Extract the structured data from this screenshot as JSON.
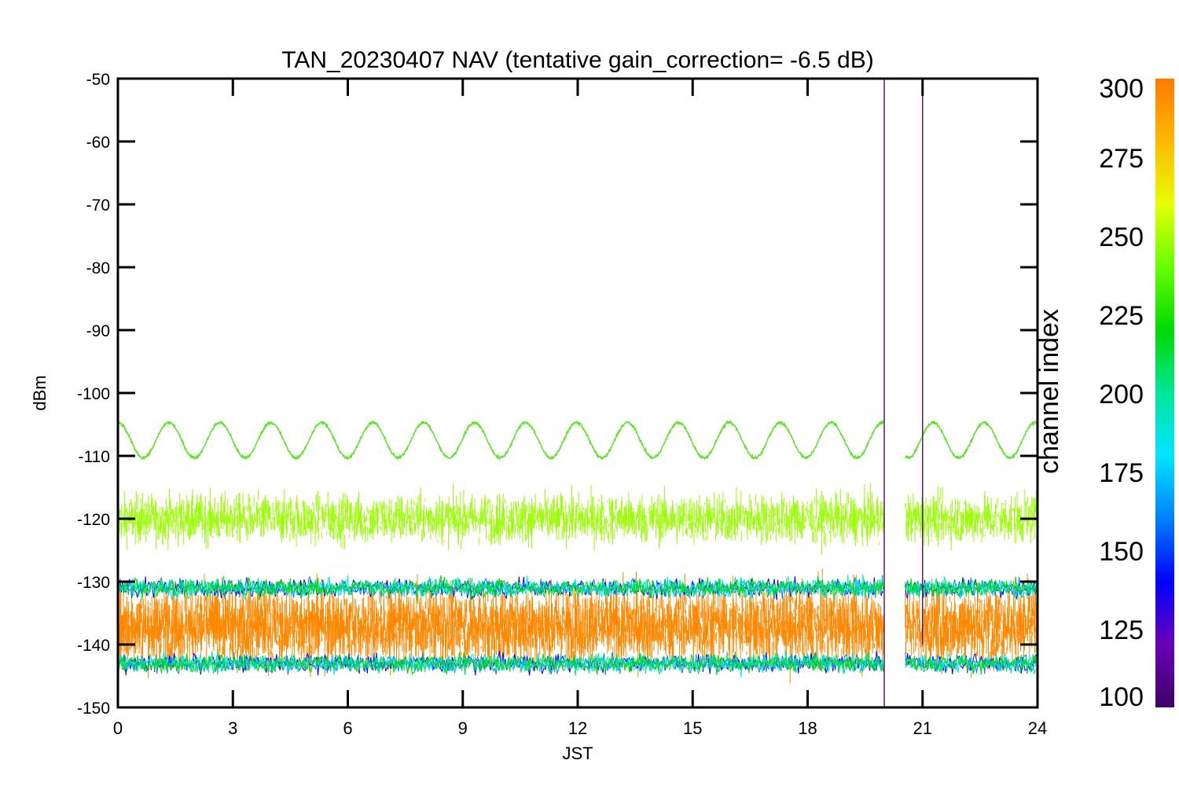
{
  "chart_data": {
    "type": "line",
    "title": "TAN_20230407 NAV (tentative gain_correction= -6.5 dB)",
    "xlabel": "JST",
    "ylabel": "dBm",
    "xlim": [
      0,
      24
    ],
    "ylim": [
      -150,
      -50
    ],
    "xticks": [
      "0",
      "3",
      "6",
      "9",
      "12",
      "15",
      "18",
      "21",
      "24"
    ],
    "yticks": [
      "-50",
      "-60",
      "-70",
      "-80",
      "-90",
      "-100",
      "-110",
      "-120",
      "-130",
      "-140",
      "-150"
    ],
    "data_gap": [
      20.0,
      20.55
    ],
    "spikes": [
      {
        "x": 20.0,
        "y_top": -50,
        "y_bottom": -150
      },
      {
        "x": 21.0,
        "y_top": -52,
        "y_bottom": -140
      }
    ],
    "series": [
      {
        "channel": 240,
        "color": "#55e61f",
        "description": "sinusoid",
        "mean": -107.5,
        "amplitude": 2.8,
        "period_hours": 1.33,
        "noise": 0.4
      },
      {
        "channel": 258,
        "color": "#99ff00",
        "description": "noise band",
        "mean": -120,
        "noise_range": [
          -126,
          -114
        ]
      },
      {
        "channel": 290,
        "color": "#ff8800",
        "description": "dense band",
        "mean": -137,
        "noise_range": [
          -146,
          -127
        ]
      }
    ],
    "colorbar": {
      "label": "channel index",
      "range": [
        100,
        300
      ],
      "ticks": [
        "300",
        "275",
        "250",
        "225",
        "200",
        "175",
        "150",
        "125",
        "100"
      ],
      "colors": [
        "#3d0066",
        "#6a00b8",
        "#0000ff",
        "#0080ff",
        "#00e5ff",
        "#00e699",
        "#00d900",
        "#66ff00",
        "#e6ff00",
        "#ffb800",
        "#ff7a00"
      ]
    }
  }
}
